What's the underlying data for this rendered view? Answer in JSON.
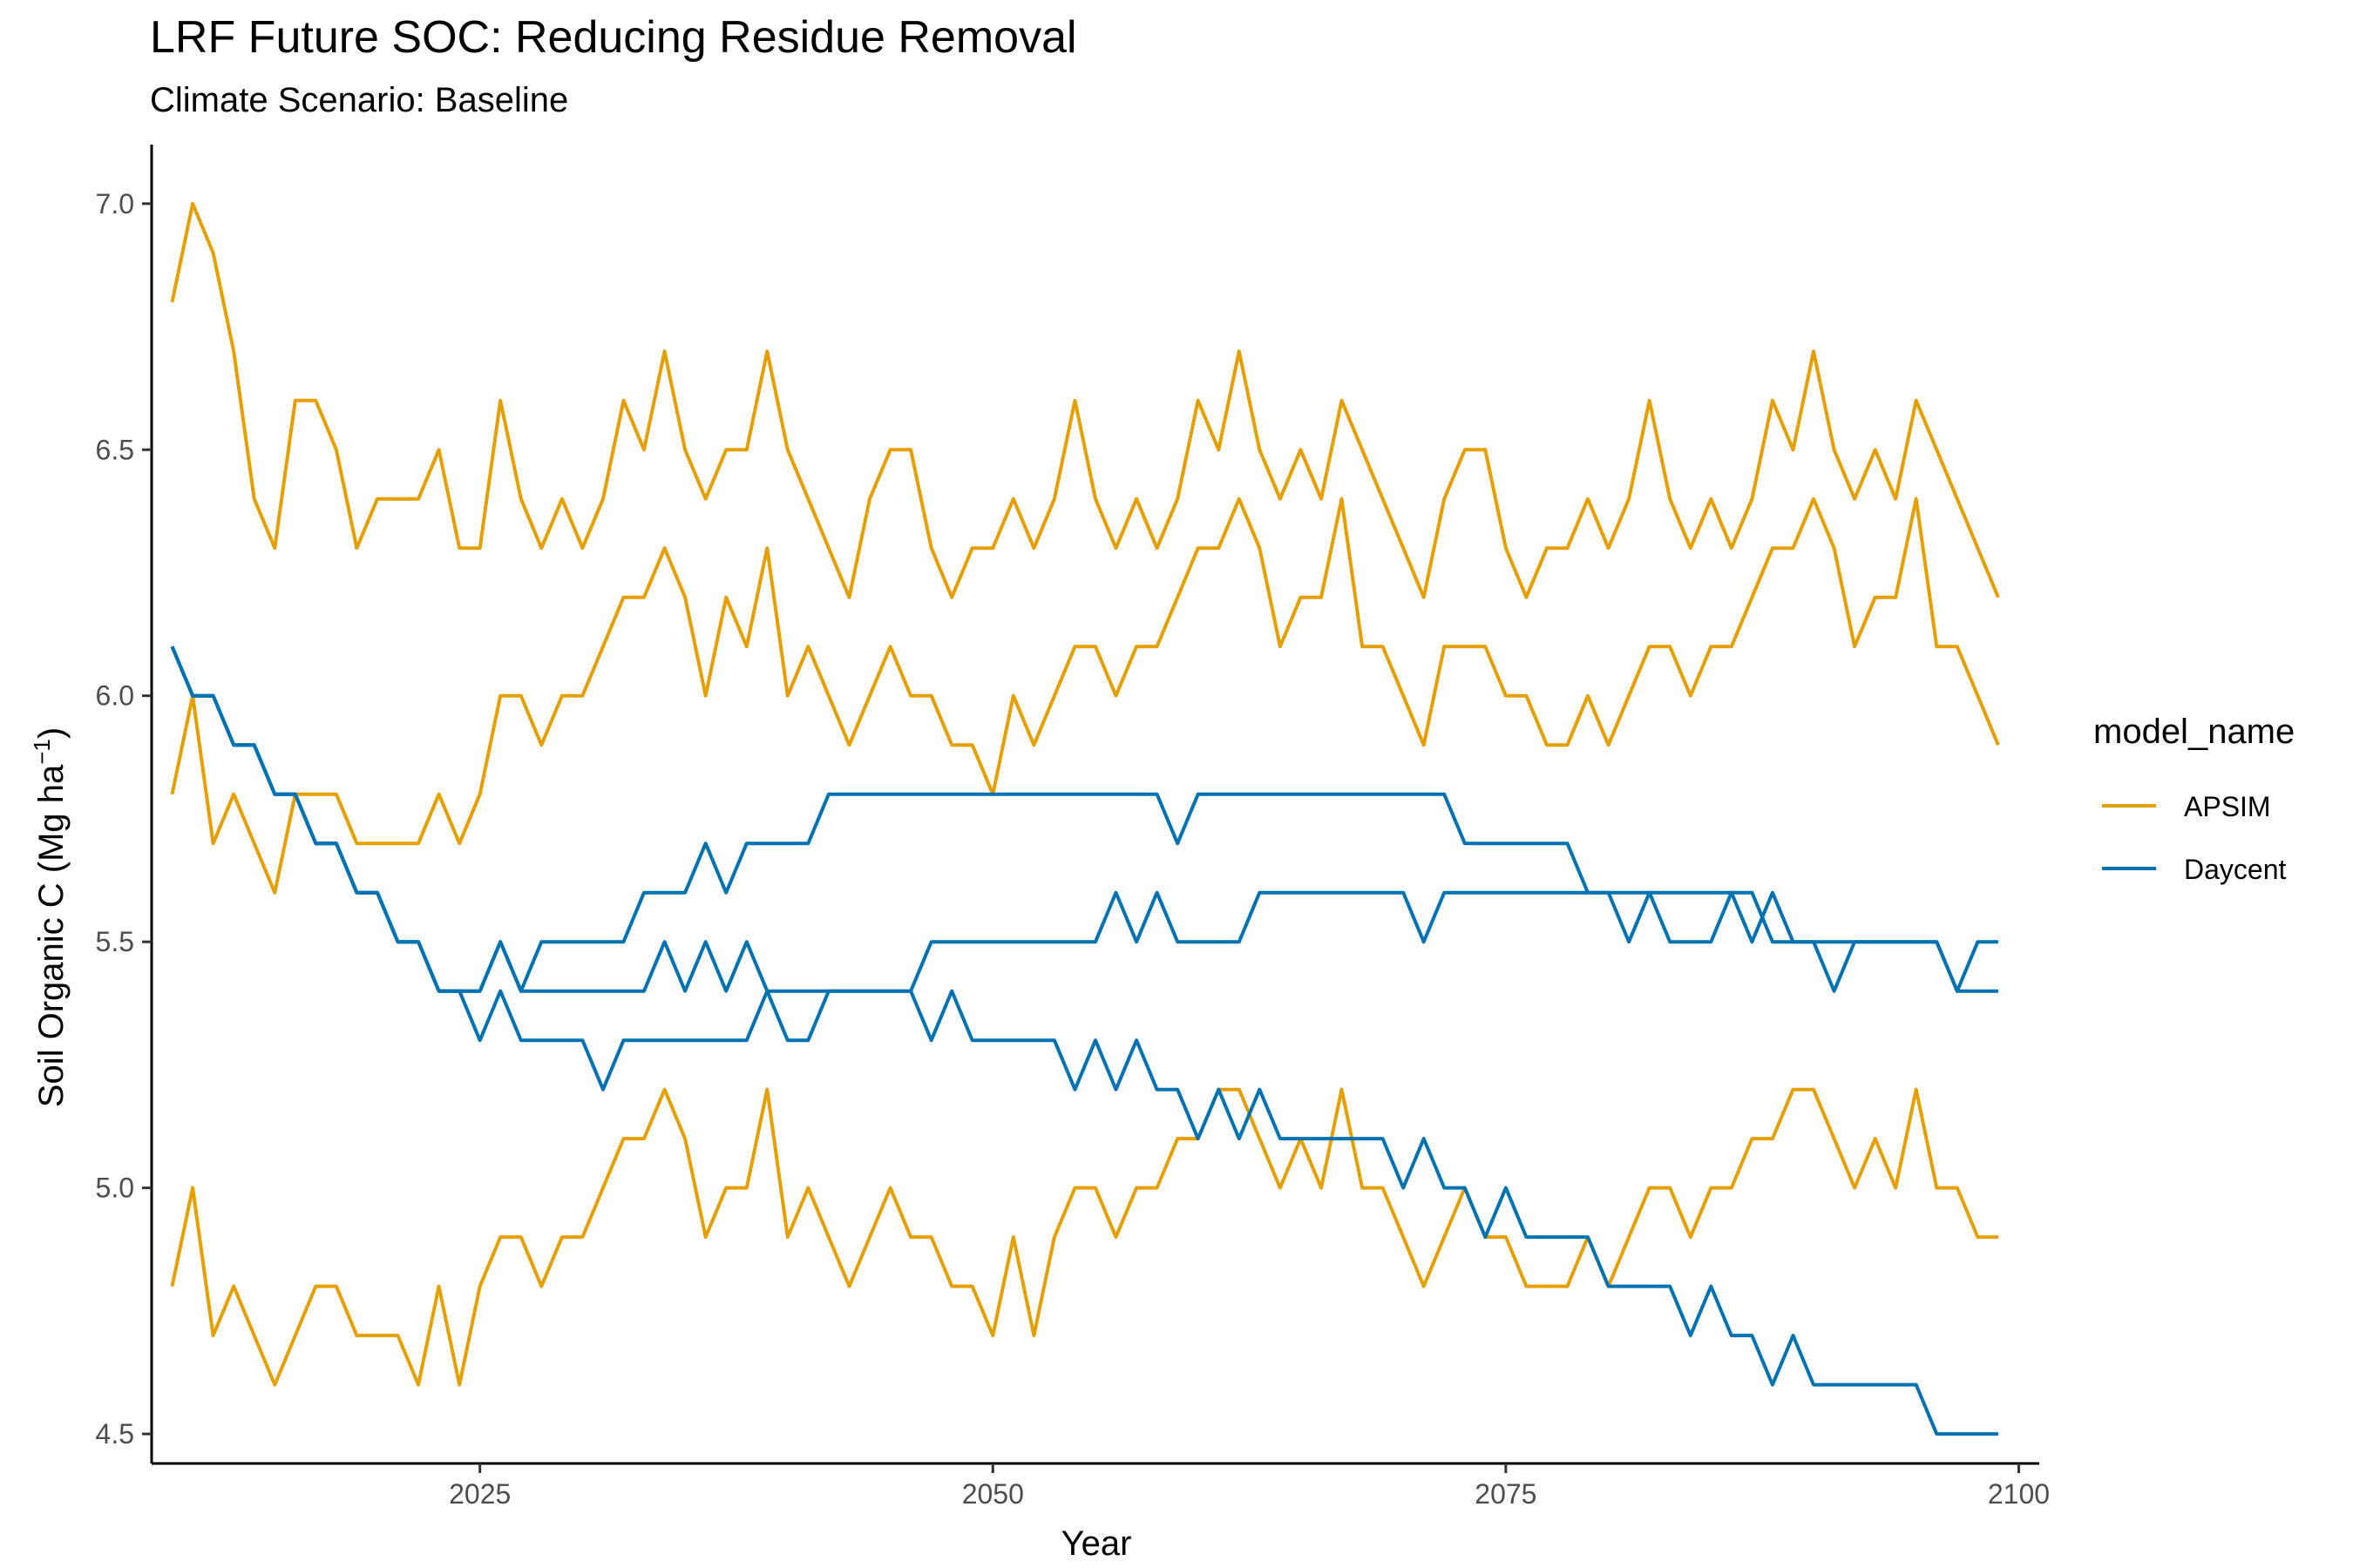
{
  "chart_data": {
    "type": "line",
    "title": "LRF  Future SOC: Reducing Residue Removal",
    "subtitle": "Climate Scenario: Baseline",
    "xlabel": "Year",
    "ylabel_prefix": "Soil Organic C (Mg ha",
    "ylabel_sup": "−1",
    "ylabel_suffix": ")",
    "xlim": [
      2009,
      2101
    ],
    "ylim": [
      4.44,
      7.12
    ],
    "x_ticks": [
      2025,
      2050,
      2075,
      2100
    ],
    "y_ticks": [
      4.5,
      5.0,
      5.5,
      6.0,
      6.5,
      7.0
    ],
    "y_tick_labels": [
      "4.5",
      "5.0",
      "5.5",
      "6.0",
      "6.5",
      "7.0"
    ],
    "grid": false,
    "legend": {
      "title": "model_name",
      "position": "right",
      "entries": [
        {
          "label": "APSIM",
          "color": "#E69F00"
        },
        {
          "label": "Daycent",
          "color": "#0072B2"
        }
      ]
    },
    "x_start": 2010,
    "series": [
      {
        "model": "APSIM",
        "color": "#E69F00",
        "values": [
          6.8,
          7.0,
          6.9,
          6.7,
          6.4,
          6.3,
          6.6,
          6.6,
          6.5,
          6.3,
          6.4,
          6.4,
          6.4,
          6.5,
          6.3,
          6.3,
          6.6,
          6.4,
          6.3,
          6.4,
          6.3,
          6.4,
          6.6,
          6.5,
          6.7,
          6.5,
          6.4,
          6.5,
          6.5,
          6.7,
          6.5,
          6.4,
          6.3,
          6.2,
          6.4,
          6.5,
          6.5,
          6.3,
          6.2,
          6.3,
          6.3,
          6.4,
          6.3,
          6.4,
          6.6,
          6.4,
          6.3,
          6.4,
          6.3,
          6.4,
          6.6,
          6.5,
          6.7,
          6.5,
          6.4,
          6.5,
          6.4,
          6.6,
          6.5,
          6.4,
          6.3,
          6.2,
          6.4,
          6.5,
          6.5,
          6.3,
          6.2,
          6.3,
          6.3,
          6.4,
          6.3,
          6.4,
          6.6,
          6.4,
          6.3,
          6.4,
          6.3,
          6.4,
          6.6,
          6.5,
          6.7,
          6.5,
          6.4,
          6.5,
          6.4,
          6.6,
          6.5,
          6.4,
          6.3,
          6.2
        ]
      },
      {
        "model": "APSIM",
        "color": "#E69F00",
        "values": [
          5.8,
          6.0,
          5.7,
          5.8,
          5.7,
          5.6,
          5.8,
          5.8,
          5.8,
          5.7,
          5.7,
          5.7,
          5.7,
          5.8,
          5.7,
          5.8,
          6.0,
          6.0,
          5.9,
          6.0,
          6.0,
          6.1,
          6.2,
          6.2,
          6.3,
          6.2,
          6.0,
          6.2,
          6.1,
          6.3,
          6.0,
          6.1,
          6.0,
          5.9,
          6.0,
          6.1,
          6.0,
          6.0,
          5.9,
          5.9,
          5.8,
          6.0,
          5.9,
          6.0,
          6.1,
          6.1,
          6.0,
          6.1,
          6.1,
          6.2,
          6.3,
          6.3,
          6.4,
          6.3,
          6.1,
          6.2,
          6.2,
          6.4,
          6.1,
          6.1,
          6.0,
          5.9,
          6.1,
          6.1,
          6.1,
          6.0,
          6.0,
          5.9,
          5.9,
          6.0,
          5.9,
          6.0,
          6.1,
          6.1,
          6.0,
          6.1,
          6.1,
          6.2,
          6.3,
          6.3,
          6.4,
          6.3,
          6.1,
          6.2,
          6.2,
          6.4,
          6.1,
          6.1,
          6.0,
          5.9
        ]
      },
      {
        "model": "APSIM",
        "color": "#E69F00",
        "values": [
          4.8,
          5.0,
          4.7,
          4.8,
          4.7,
          4.6,
          4.7,
          4.8,
          4.8,
          4.7,
          4.7,
          4.7,
          4.6,
          4.8,
          4.6,
          4.8,
          4.9,
          4.9,
          4.8,
          4.9,
          4.9,
          5.0,
          5.1,
          5.1,
          5.2,
          5.1,
          4.9,
          5.0,
          5.0,
          5.2,
          4.9,
          5.0,
          4.9,
          4.8,
          4.9,
          5.0,
          4.9,
          4.9,
          4.8,
          4.8,
          4.7,
          4.9,
          4.7,
          4.9,
          5.0,
          5.0,
          4.9,
          5.0,
          5.0,
          5.1,
          5.1,
          5.2,
          5.2,
          5.1,
          5.0,
          5.1,
          5.0,
          5.2,
          5.0,
          5.0,
          4.9,
          4.8,
          4.9,
          5.0,
          4.9,
          4.9,
          4.8,
          4.8,
          4.8,
          4.9,
          4.8,
          4.9,
          5.0,
          5.0,
          4.9,
          5.0,
          5.0,
          5.1,
          5.1,
          5.2,
          5.2,
          5.1,
          5.0,
          5.1,
          5.0,
          5.2,
          5.0,
          5.0,
          4.9,
          4.9
        ]
      },
      {
        "model": "Daycent",
        "color": "#0072B2",
        "values": [
          6.1,
          6.0,
          6.0,
          5.9,
          5.9,
          5.8,
          5.8,
          5.7,
          5.7,
          5.6,
          5.6,
          5.5,
          5.5,
          5.4,
          5.4,
          5.4,
          5.5,
          5.4,
          5.5,
          5.5,
          5.5,
          5.5,
          5.5,
          5.6,
          5.6,
          5.6,
          5.7,
          5.6,
          5.7,
          5.7,
          5.7,
          5.7,
          5.8,
          5.8,
          5.8,
          5.8,
          5.8,
          5.8,
          5.8,
          5.8,
          5.8,
          5.8,
          5.8,
          5.8,
          5.8,
          5.8,
          5.8,
          5.8,
          5.8,
          5.7,
          5.8,
          5.8,
          5.8,
          5.8,
          5.8,
          5.8,
          5.8,
          5.8,
          5.8,
          5.8,
          5.8,
          5.8,
          5.8,
          5.7,
          5.7,
          5.7,
          5.7,
          5.7,
          5.7,
          5.6,
          5.6,
          5.6,
          5.6,
          5.6,
          5.6,
          5.6,
          5.6,
          5.6,
          5.5,
          5.5,
          5.5,
          5.5,
          5.5,
          5.5,
          5.5,
          5.5,
          5.5,
          5.4,
          5.4,
          5.4
        ]
      },
      {
        "model": "Daycent",
        "color": "#0072B2",
        "values": [
          6.1,
          6.0,
          6.0,
          5.9,
          5.9,
          5.8,
          5.8,
          5.7,
          5.7,
          5.6,
          5.6,
          5.5,
          5.5,
          5.4,
          5.4,
          5.3,
          5.4,
          5.3,
          5.3,
          5.3,
          5.3,
          5.2,
          5.3,
          5.3,
          5.3,
          5.3,
          5.3,
          5.3,
          5.3,
          5.4,
          5.3,
          5.3,
          5.4,
          5.4,
          5.4,
          5.4,
          5.4,
          5.3,
          5.4,
          5.3,
          5.3,
          5.3,
          5.3,
          5.3,
          5.2,
          5.3,
          5.2,
          5.3,
          5.2,
          5.2,
          5.1,
          5.2,
          5.1,
          5.2,
          5.1,
          5.1,
          5.1,
          5.1,
          5.1,
          5.1,
          5.0,
          5.1,
          5.0,
          5.0,
          4.9,
          5.0,
          4.9,
          4.9,
          4.9,
          4.9,
          4.8,
          4.8,
          4.8,
          4.8,
          4.7,
          4.8,
          4.7,
          4.7,
          4.6,
          4.7,
          4.6,
          4.6,
          4.6,
          4.6,
          4.6,
          4.6,
          4.5,
          4.5,
          4.5,
          4.5
        ]
      },
      {
        "model": "Daycent",
        "color": "#0072B2",
        "values": [
          6.1,
          6.0,
          6.0,
          5.9,
          5.9,
          5.8,
          5.8,
          5.7,
          5.7,
          5.6,
          5.6,
          5.5,
          5.5,
          5.4,
          5.4,
          5.4,
          5.5,
          5.4,
          5.4,
          5.4,
          5.4,
          5.4,
          5.4,
          5.4,
          5.5,
          5.4,
          5.5,
          5.4,
          5.5,
          5.4,
          5.4,
          5.4,
          5.4,
          5.4,
          5.4,
          5.4,
          5.4,
          5.5,
          5.5,
          5.5,
          5.5,
          5.5,
          5.5,
          5.5,
          5.5,
          5.5,
          5.6,
          5.5,
          5.6,
          5.5,
          5.5,
          5.5,
          5.5,
          5.6,
          5.6,
          5.6,
          5.6,
          5.6,
          5.6,
          5.6,
          5.6,
          5.5,
          5.6,
          5.6,
          5.6,
          5.6,
          5.6,
          5.6,
          5.6,
          5.6,
          5.6,
          5.5,
          5.6,
          5.5,
          5.5,
          5.5,
          5.6,
          5.5,
          5.6,
          5.5,
          5.5,
          5.4,
          5.5,
          5.5,
          5.5,
          5.5,
          5.5,
          5.4,
          5.5,
          5.5
        ]
      }
    ]
  }
}
